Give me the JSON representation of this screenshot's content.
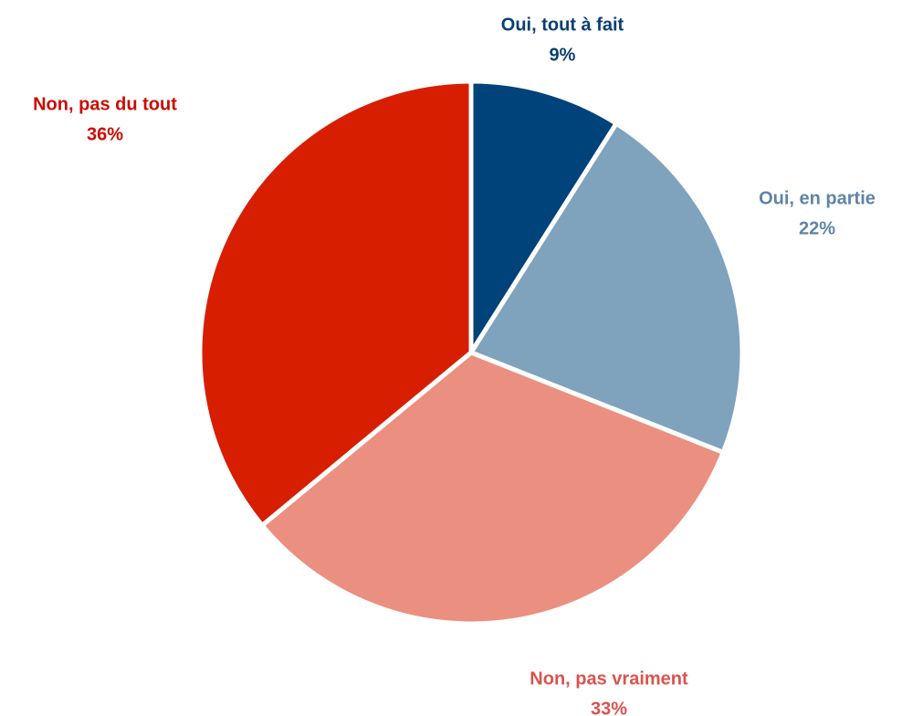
{
  "chart_data": {
    "type": "pie",
    "categories": [
      "Oui, tout à fait",
      "Oui, en partie",
      "Non, pas vraiment",
      "Non, pas du tout"
    ],
    "values": [
      9,
      22,
      33,
      36
    ],
    "value_labels": [
      "9%",
      "22%",
      "33%",
      "36%"
    ],
    "colors": [
      "#00427a",
      "#7fa2bd",
      "#eb8f80",
      "#d81e00"
    ],
    "label_colors": [
      "#0b3f73",
      "#5f84a6",
      "#d9534f",
      "#cc0c00"
    ]
  }
}
